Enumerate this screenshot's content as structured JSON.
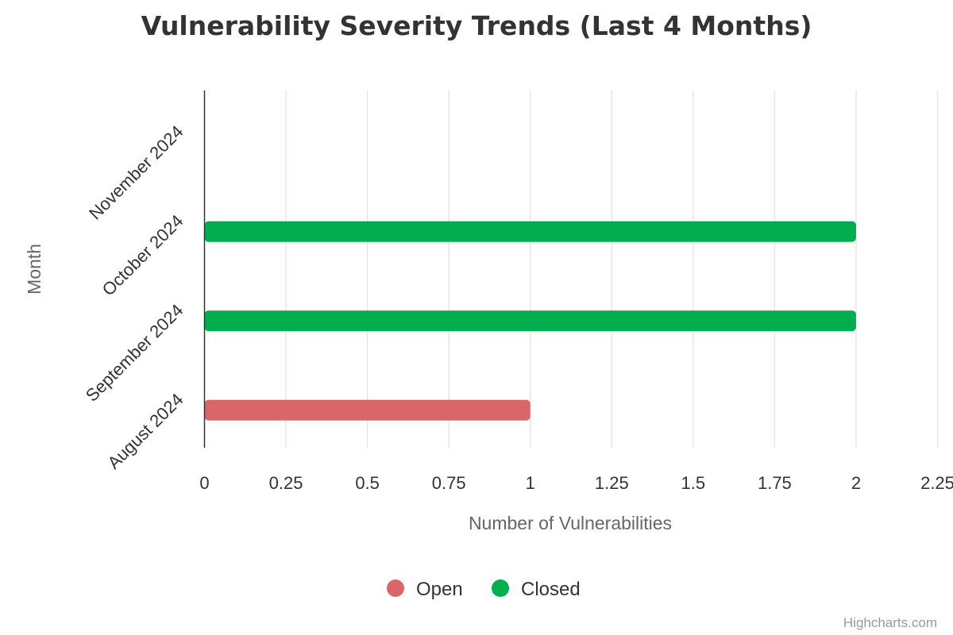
{
  "chart_data": {
    "type": "bar",
    "orientation": "horizontal",
    "stacking": "normal",
    "title": "Vulnerability Severity Trends (Last 4 Months)",
    "xlabel": "Month",
    "ylabel": "Number of Vulnerabilities",
    "categories": [
      "November 2024",
      "October 2024",
      "September 2024",
      "August 2024"
    ],
    "series": [
      {
        "name": "Open",
        "color": "#d9676a",
        "values": [
          0,
          0,
          0,
          1
        ]
      },
      {
        "name": "Closed",
        "color": "#00ae4f",
        "values": [
          0,
          2,
          2,
          0
        ]
      }
    ],
    "ylim": [
      0,
      2.25
    ],
    "yticks": [
      "0",
      "0.25",
      "0.5",
      "0.75",
      "1",
      "1.25",
      "1.5",
      "1.75",
      "2",
      "2.25"
    ],
    "grid": true,
    "legend_position": "bottom-center"
  },
  "credits": "Highcharts.com"
}
